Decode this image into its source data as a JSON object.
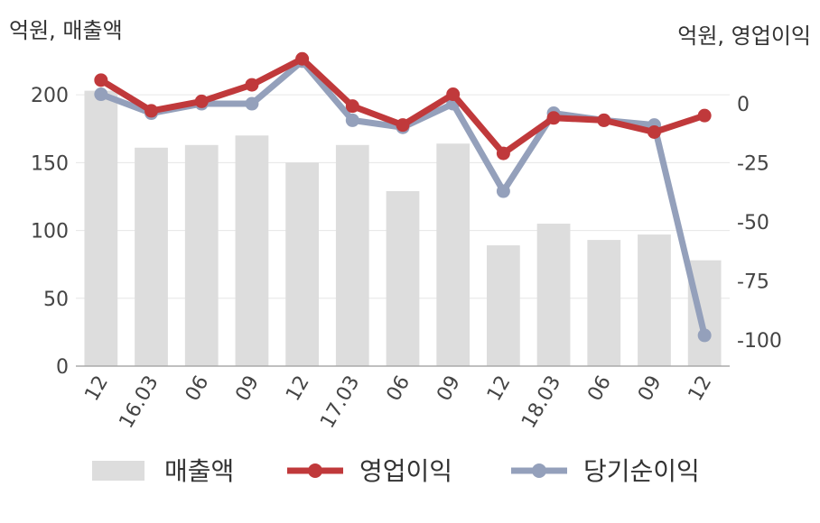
{
  "chart_data": {
    "type": "bar+line",
    "y_left_unit": "억원, 매출액",
    "y_right_unit": "억원, 영업이익",
    "categories": [
      "12",
      "16.03",
      "06",
      "09",
      "12",
      "17.03",
      "06",
      "09",
      "12",
      "18.03",
      "06",
      "09",
      "12"
    ],
    "ylim_left": [
      0,
      230
    ],
    "yticks_left": [
      0,
      50,
      100,
      150,
      200
    ],
    "ylim_right": [
      -111,
      21
    ],
    "yticks_right": [
      0,
      -25,
      -50,
      -75,
      -100
    ],
    "series": [
      {
        "name": "매출액",
        "kind": "bar",
        "axis": "left",
        "color": "#dddddd",
        "values": [
          203,
          161,
          163,
          170,
          150,
          163,
          129,
          164,
          89,
          105,
          93,
          97,
          78
        ]
      },
      {
        "name": "영업이익",
        "kind": "line",
        "axis": "right",
        "color": "#c0393b",
        "values": [
          10,
          -3,
          1,
          8,
          19,
          -1,
          -9,
          4,
          -21,
          -6,
          -7,
          -12,
          -5
        ]
      },
      {
        "name": "당기순이익",
        "kind": "line",
        "axis": "right",
        "color": "#94a0bb",
        "values": [
          4,
          -4,
          0,
          0,
          18,
          -7,
          -10,
          0,
          -37,
          -4,
          -7,
          -9,
          -98
        ]
      }
    ],
    "grid": true,
    "legend_position": "bottom"
  }
}
